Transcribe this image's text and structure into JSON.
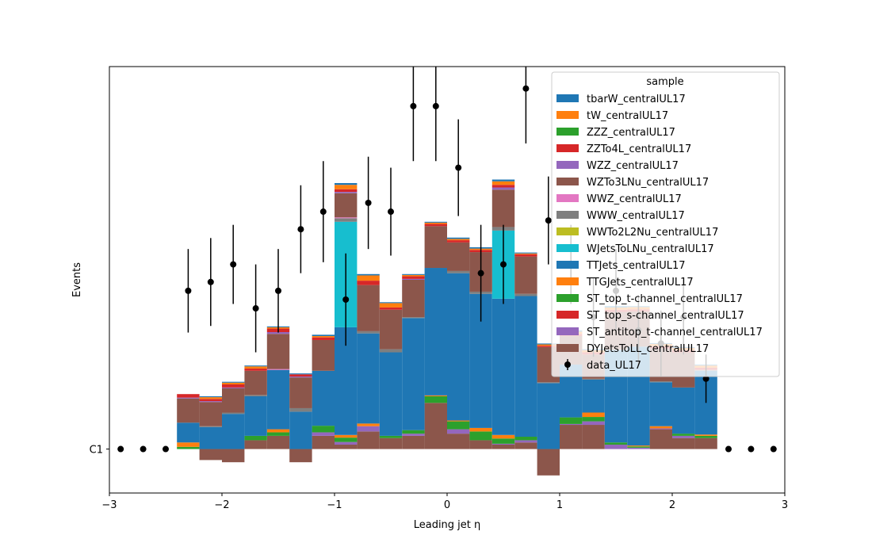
{
  "chart_data": {
    "type": "bar",
    "stacked": true,
    "histogram": true,
    "xlabel": "Leading jet  η",
    "ylabel": "Events",
    "xlim": [
      -3,
      3
    ],
    "xticks": [
      -3,
      -2,
      -1,
      0,
      1,
      2,
      3
    ],
    "xtick_labels": [
      "−3",
      "−2",
      "−1",
      "0",
      "1",
      "2",
      "3"
    ],
    "ylim": [
      -1,
      8.7
    ],
    "ytick": {
      "value": 0,
      "label": "C1"
    },
    "grid": false,
    "legend": {
      "title": "sample",
      "placement": "top-right"
    },
    "bin_edges": [
      -2.4,
      -2.2,
      -2.0,
      -1.8,
      -1.6,
      -1.4,
      -1.2,
      -1.0,
      -0.8,
      -0.6,
      -0.4,
      -0.2,
      0.0,
      0.2,
      0.4,
      0.6,
      0.8,
      1.0,
      1.2,
      1.4,
      1.6,
      1.8,
      2.0,
      2.2,
      2.4
    ],
    "series": [
      {
        "name": "DYJetsToLL_centralUL17",
        "color": "#8c564b",
        "values": [
          0,
          -0.25,
          -0.3,
          0.2,
          0.3,
          -0.3,
          0.3,
          0.1,
          0.4,
          0.25,
          0.3,
          1.05,
          0.35,
          0.2,
          0.1,
          0.15,
          -0.6,
          0.55,
          0.55,
          0.0,
          0.0,
          0.45,
          0.25,
          0.25
        ]
      },
      {
        "name": "ST_antitop_t-channel_centralUL17",
        "color": "#9467bd",
        "values": [
          0,
          0,
          0,
          0,
          0,
          0,
          0.08,
          0.06,
          0.12,
          0,
          0.05,
          0,
          0.1,
          0,
          0.02,
          0.05,
          0,
          0.02,
          0.08,
          0.1,
          0.03,
          0.02,
          0.05,
          0
        ]
      },
      {
        "name": "ST_top_s-channel_centralUL17",
        "color": "#d62728",
        "values": [
          0,
          0,
          0,
          0,
          0,
          0,
          0,
          0,
          0,
          0,
          0,
          0,
          0,
          0,
          0,
          0,
          0,
          0,
          0,
          0,
          0,
          0,
          0,
          0
        ]
      },
      {
        "name": "ST_top_t-channel_centralUL17",
        "color": "#2ca02c",
        "values": [
          0.05,
          0,
          0,
          0.1,
          0.08,
          0,
          0.15,
          0.1,
          0,
          0.05,
          0.08,
          0.15,
          0.18,
          0.2,
          0.12,
          0.08,
          0,
          0.15,
          0.1,
          0.05,
          0.03,
          0,
          0.05,
          0.05
        ]
      },
      {
        "name": "TTGJets_centralUL17",
        "color": "#ff7f0e",
        "values": [
          0.1,
          0,
          0,
          0,
          0.07,
          0,
          0,
          0.06,
          0.06,
          0,
          0,
          0.02,
          0.02,
          0.08,
          0.08,
          0,
          0,
          0,
          0.1,
          0,
          0.02,
          0.05,
          0,
          0.03
        ]
      },
      {
        "name": "TTJets_centralUL17",
        "color": "#1f77b4",
        "values": [
          0.45,
          0.5,
          0.8,
          0.9,
          1.35,
          0.85,
          1.25,
          2.45,
          2.05,
          1.9,
          2.55,
          2.9,
          3.35,
          3.05,
          3.1,
          3.2,
          1.5,
          1.2,
          0.75,
          2.1,
          2.25,
          1.0,
          1.05,
          1.45
        ]
      },
      {
        "name": "WJetsToLNu_centralUL17",
        "color": "#17becf",
        "values": [
          0,
          0,
          0,
          0,
          0,
          0,
          0,
          2.4,
          0,
          0,
          0,
          0,
          0,
          0,
          1.55,
          0,
          0,
          0,
          0,
          0,
          0,
          0,
          0,
          0
        ]
      },
      {
        "name": "WWTo2L2Nu_centralUL17",
        "color": "#bcbd22",
        "values": [
          0,
          0,
          0,
          0,
          0,
          0,
          0,
          0,
          0,
          0,
          0,
          0,
          0,
          0,
          0,
          0,
          0,
          0,
          0,
          0,
          0,
          0,
          0,
          0
        ]
      },
      {
        "name": "WWW_centralUL17",
        "color": "#7f7f7f",
        "values": [
          0,
          0.02,
          0.03,
          0.03,
          0,
          0.08,
          0,
          0.08,
          0.05,
          0.07,
          0.02,
          0,
          0.05,
          0.05,
          0.08,
          0.05,
          0.02,
          0,
          0.02,
          0.02,
          0,
          0.02,
          0,
          0.02
        ]
      },
      {
        "name": "WWZ_centralUL17",
        "color": "#e377c2",
        "values": [
          0,
          0,
          0,
          0,
          0.02,
          0,
          0,
          0.02,
          0,
          0,
          0,
          0,
          0,
          0,
          0,
          0,
          0,
          0,
          0,
          0,
          0,
          0,
          0,
          0
        ]
      },
      {
        "name": "WZTo3LNu_centralUL17",
        "color": "#8c564b",
        "values": [
          0.55,
          0.55,
          0.55,
          0.55,
          0.8,
          0.7,
          0.7,
          0.55,
          1.05,
          0.9,
          0.85,
          0.95,
          0.65,
          0.9,
          0.85,
          0.85,
          0.8,
          0.65,
          0.55,
          0.85,
          0.8,
          0.75,
          0.8,
          0.0
        ]
      },
      {
        "name": "WZZ_centralUL17",
        "color": "#9467bd",
        "values": [
          0.02,
          0.02,
          0.02,
          0,
          0.04,
          0.02,
          0,
          0.03,
          0,
          0,
          0.02,
          0,
          0,
          0,
          0.05,
          0,
          0,
          0,
          0,
          0,
          0,
          0,
          0,
          0
        ]
      },
      {
        "name": "ZZTo4L_centralUL17",
        "color": "#d62728",
        "values": [
          0.08,
          0.05,
          0.07,
          0.05,
          0.08,
          0.05,
          0.06,
          0.06,
          0.1,
          0.05,
          0.06,
          0.05,
          0.05,
          0.05,
          0.06,
          0.05,
          0.03,
          0.05,
          0.05,
          0.05,
          0.05,
          0.05,
          0.05,
          0.05
        ]
      },
      {
        "name": "ZZZ_centralUL17",
        "color": "#2ca02c",
        "values": [
          0,
          0,
          0,
          0,
          0,
          0,
          0,
          0,
          0,
          0,
          0,
          0,
          0,
          0,
          0,
          0,
          0,
          0,
          0,
          0,
          0,
          0,
          0,
          0
        ]
      },
      {
        "name": "tW_centralUL17",
        "color": "#ff7f0e",
        "values": [
          0,
          0.04,
          0.04,
          0.05,
          0.03,
          0,
          0.03,
          0.1,
          0.12,
          0.1,
          0.03,
          0.03,
          0.03,
          0.03,
          0.08,
          0.02,
          0.03,
          0.05,
          0.05,
          0.05,
          0.05,
          0.05,
          0.05,
          0.05
        ]
      },
      {
        "name": "tbarW_centralUL17",
        "color": "#1f77b4",
        "values": [
          0,
          0.02,
          0.02,
          0.02,
          0.02,
          0.02,
          0.03,
          0.04,
          0.03,
          0.02,
          0.02,
          0.02,
          0.03,
          0.03,
          0.04,
          0.02,
          0.02,
          0.03,
          0.02,
          0.03,
          0.02,
          0.02,
          0.02,
          0.02
        ]
      }
    ],
    "data": {
      "name": "data_UL17",
      "color": "#000000",
      "x": [
        -2.9,
        -2.7,
        -2.5,
        -2.3,
        -2.1,
        -1.9,
        -1.7,
        -1.5,
        -1.3,
        -1.1,
        -0.9,
        -0.7,
        -0.5,
        -0.3,
        -0.1,
        0.1,
        0.3,
        0.5,
        0.7,
        0.9,
        1.1,
        1.3,
        1.5,
        1.7,
        1.9,
        2.1,
        2.3,
        2.5,
        2.7,
        2.9
      ],
      "y": [
        0,
        0,
        0,
        3.6,
        3.8,
        4.2,
        3.2,
        3.6,
        5.0,
        5.4,
        3.4,
        5.6,
        5.4,
        7.8,
        7.8,
        6.4,
        4.0,
        4.2,
        8.2,
        5.2,
        4.2,
        3.0,
        3.6,
        2.7,
        2.4,
        3.0,
        1.6,
        0,
        0,
        0
      ],
      "yerr": [
        0,
        0,
        0,
        0.95,
        1.0,
        0.9,
        1.0,
        0.95,
        1.0,
        1.15,
        1.05,
        1.05,
        1.0,
        1.25,
        1.25,
        1.1,
        1.1,
        0.9,
        1.25,
        1.0,
        0.9,
        0.9,
        0.95,
        0.8,
        0.75,
        0.85,
        0.55,
        0,
        0,
        0
      ]
    }
  }
}
